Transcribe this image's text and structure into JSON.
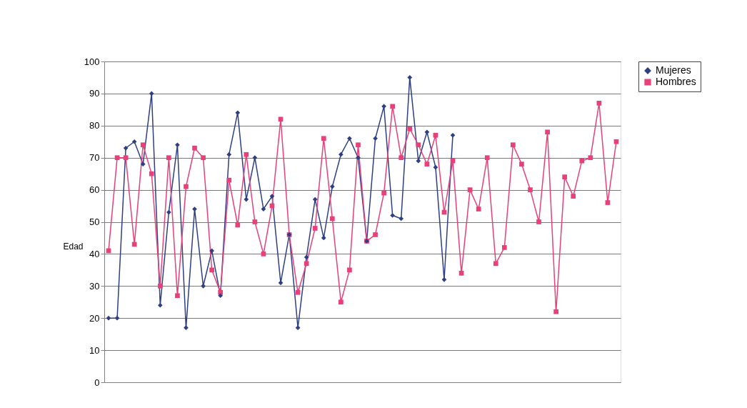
{
  "chart_data": {
    "type": "line",
    "ylabel": "Edad",
    "categories": [
      null,
      null,
      null,
      null,
      null,
      null,
      null,
      null,
      null,
      null,
      null,
      null,
      null,
      null,
      null,
      null,
      null,
      null,
      null,
      null,
      null,
      null,
      null,
      null,
      null,
      null,
      null,
      null,
      null,
      null,
      null,
      null,
      null,
      null,
      null,
      null,
      null,
      null,
      null,
      null,
      null,
      null,
      null,
      null,
      null,
      null,
      null,
      null,
      null,
      null,
      null,
      null,
      null,
      null,
      null,
      null,
      null,
      null,
      null,
      null
    ],
    "series": [
      {
        "name": "Mujeres",
        "color": "#2e3f84",
        "marker": "diamond",
        "values": [
          20,
          20,
          73,
          75,
          68,
          90,
          24,
          53,
          74,
          17,
          54,
          30,
          41,
          27,
          71,
          84,
          57,
          70,
          54,
          58,
          31,
          46,
          17,
          39,
          57,
          45,
          61,
          71,
          76,
          70,
          44,
          76,
          86,
          52,
          51,
          95,
          69,
          78,
          67,
          32,
          77,
          null,
          null,
          null,
          null,
          null,
          null,
          null,
          null,
          null,
          null,
          null,
          null,
          null,
          null,
          null,
          null,
          null,
          null,
          null
        ]
      },
      {
        "name": "Hombres",
        "color": "#e8407a",
        "marker": "square",
        "values": [
          41,
          70,
          70,
          43,
          74,
          65,
          30,
          70,
          27,
          61,
          73,
          70,
          35,
          28,
          63,
          49,
          71,
          50,
          40,
          55,
          82,
          46,
          28,
          37,
          48,
          76,
          51,
          25,
          35,
          74,
          44,
          46,
          59,
          86,
          70,
          79,
          74,
          68,
          77,
          53,
          69,
          34,
          60,
          54,
          70,
          37,
          42,
          74,
          68,
          60,
          50,
          78,
          22,
          64,
          58,
          69,
          70,
          87,
          56,
          75
        ]
      }
    ],
    "ylim": [
      0,
      100
    ],
    "yticks": [
      0,
      10,
      20,
      30,
      40,
      50,
      60,
      70,
      80,
      90,
      100
    ],
    "grid": "y",
    "legend": "right",
    "tick_labels": "y"
  }
}
